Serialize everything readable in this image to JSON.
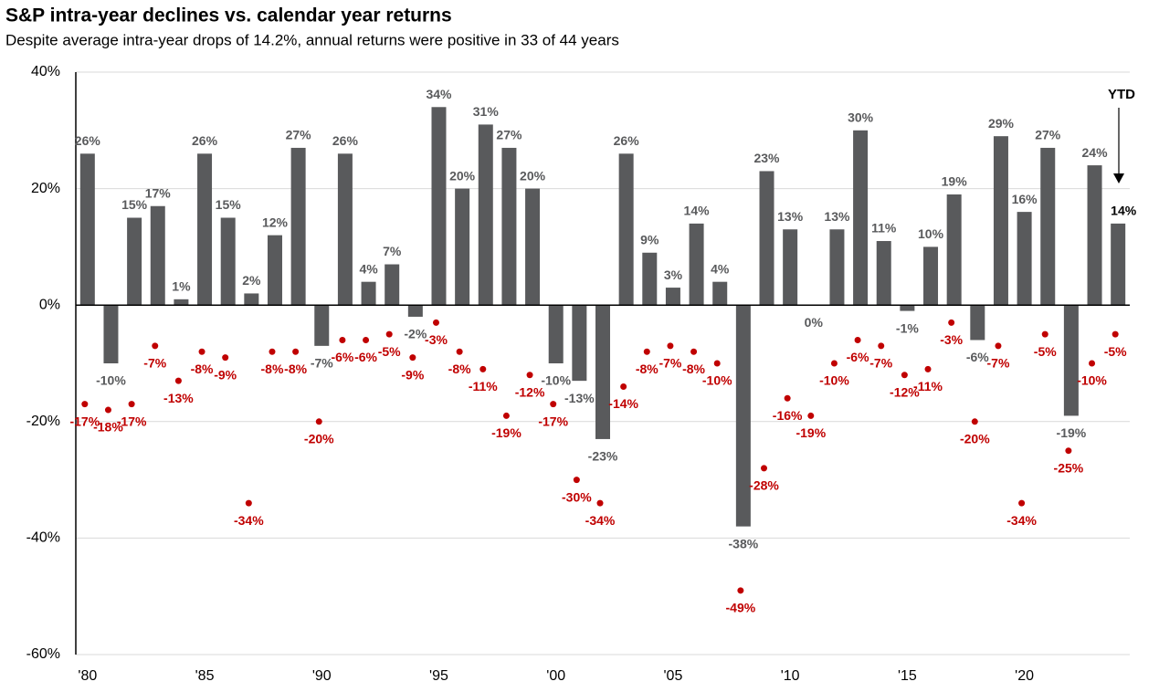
{
  "chart_data": {
    "type": "bar",
    "title": "S&P intra-year declines vs. calendar year returns",
    "subtitle": "Despite average intra-year drops of 14.2%, annual returns were positive in 33 of 44 years",
    "annotation": "YTD",
    "categories": [
      "'80",
      null,
      null,
      null,
      null,
      "'85",
      null,
      null,
      null,
      null,
      "'90",
      null,
      null,
      null,
      null,
      "'95",
      null,
      null,
      null,
      null,
      "'00",
      null,
      null,
      null,
      null,
      "'05",
      null,
      null,
      null,
      null,
      "'10",
      null,
      null,
      null,
      null,
      "'15",
      null,
      null,
      null,
      null,
      "'20",
      null,
      null,
      null,
      null
    ],
    "ylim": [
      -60,
      40
    ],
    "yticks": [
      {
        "value": 40,
        "label": "40%"
      },
      {
        "value": 20,
        "label": "20%"
      },
      {
        "value": 0,
        "label": "0%"
      },
      {
        "value": -20,
        "label": "-20%"
      },
      {
        "value": -40,
        "label": "-40%"
      },
      {
        "value": -60,
        "label": "-60%"
      }
    ],
    "grid": true,
    "series": [
      {
        "type": "bar",
        "color": "#595a5c",
        "label_color": "#595a5c",
        "last_label_color": "#000000",
        "values": [
          26,
          -10,
          15,
          17,
          1,
          26,
          15,
          2,
          12,
          27,
          -7,
          26,
          4,
          7,
          -2,
          34,
          20,
          31,
          27,
          20,
          -10,
          -13,
          -23,
          26,
          9,
          3,
          14,
          4,
          -38,
          23,
          13,
          0,
          13,
          30,
          11,
          -1,
          10,
          19,
          -6,
          29,
          16,
          27,
          -19,
          24,
          14
        ],
        "value_labels": [
          "26%",
          "-10%",
          "15%",
          "17%",
          "1%",
          "26%",
          "15%",
          "2%",
          "12%",
          "27%",
          "-7%",
          "26%",
          "4%",
          "7%",
          "-2%",
          "34%",
          "20%",
          "31%",
          "27%",
          "20%",
          "-10%",
          "-13%",
          "-23%",
          "26%",
          "9%",
          "3%",
          "14%",
          "4%",
          "-38%",
          "23%",
          "13%",
          "0%",
          "13%",
          "30%",
          "11%",
          "-1%",
          "10%",
          "19%",
          "-6%",
          "29%",
          "16%",
          "27%",
          "-19%",
          "24%",
          "14%"
        ]
      },
      {
        "type": "scatter",
        "color": "#c00000",
        "label_color": "#c00000",
        "values": [
          -17,
          -18,
          -17,
          -7,
          -13,
          -8,
          -9,
          -34,
          -8,
          -8,
          -20,
          -6,
          -6,
          -5,
          -9,
          -3,
          -8,
          -11,
          -19,
          -12,
          -17,
          -30,
          -34,
          -14,
          -8,
          -7,
          -8,
          -10,
          -49,
          -28,
          -16,
          -19,
          -10,
          -6,
          -7,
          -12,
          -11,
          -3,
          -20,
          -7,
          -34,
          -5,
          -25,
          -10,
          -5
        ],
        "value_labels": [
          "-17%",
          "-18%",
          "-17%",
          "-7%",
          "-13%",
          "-8%",
          "-9%",
          "-34%",
          "-8%",
          "-8%",
          "-20%",
          "-6%",
          "-6%",
          "-5%",
          "-9%",
          "-3%",
          "-8%",
          "-11%",
          "-19%",
          "-12%",
          "-17%",
          "-30%",
          "-34%",
          "-14%",
          "-8%",
          "-7%",
          "-8%",
          "-10%",
          "-49%",
          "-28%",
          "-16%",
          "-19%",
          "-10%",
          "-6%",
          "-7%",
          "-12%",
          "-11%",
          "-3%",
          "-20%",
          "-7%",
          "-34%",
          "-5%",
          "-25%",
          "-10%",
          "-5%"
        ]
      }
    ]
  }
}
